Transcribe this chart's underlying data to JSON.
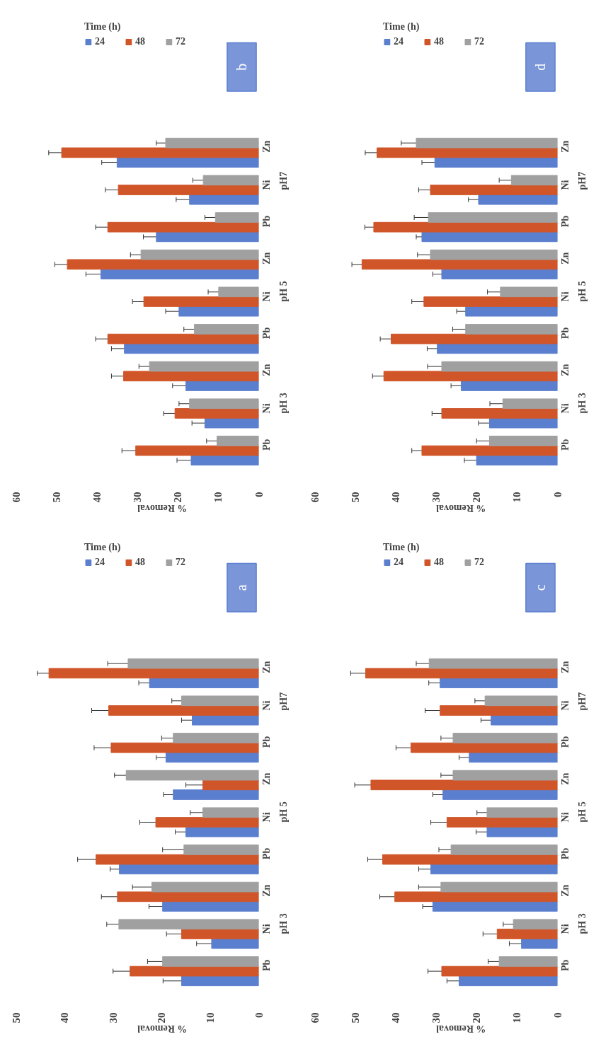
{
  "chart_data": [
    {
      "type": "bar",
      "orientation": "horizontal",
      "categories": [
        "Zn",
        "Ni",
        "Pb",
        "Zn",
        "Ni",
        "Pb",
        "Zn",
        "Ni",
        "Pb"
      ],
      "xlim": [
        60,
        0
      ],
      "xticks": [
        60,
        50,
        40,
        30,
        20,
        10,
        0
      ],
      "xlabel": "% Removal",
      "legend_title": "Time (h)",
      "legend": "top",
      "annotations": [
        "pH7",
        "pH 5",
        "pH 3",
        "b"
      ],
      "series": [
        {
          "name": "24",
          "color": "#5b7fcf",
          "values": [
            35.0,
            17.1,
            25.3,
            39.0,
            19.7,
            33.2,
            18.0,
            13.3,
            16.7
          ],
          "errors": [
            3.8,
            3.3,
            3.2,
            3.7,
            3.3,
            3.2,
            3.3,
            3.2,
            3.5
          ]
        },
        {
          "name": "48",
          "color": "#d0562a",
          "values": [
            48.7,
            34.7,
            37.3,
            47.3,
            28.4,
            37.3,
            33.4,
            20.7,
            30.4
          ],
          "errors": [
            3.2,
            3.2,
            3.0,
            3.1,
            2.8,
            3.0,
            3.0,
            2.8,
            3.4
          ]
        },
        {
          "name": "72",
          "color": "#a0a0a0",
          "values": [
            23.0,
            13.7,
            10.7,
            29.1,
            9.9,
            15.9,
            27.0,
            17.1,
            10.3
          ],
          "errors": [
            2.3,
            2.6,
            2.6,
            2.6,
            2.6,
            2.6,
            2.6,
            2.6,
            2.6
          ]
        }
      ]
    },
    {
      "type": "bar",
      "orientation": "horizontal",
      "categories": [
        "Zn",
        "Ni",
        "Pb",
        "Zn",
        "Ni",
        "Pb",
        "Zn",
        "Ni",
        "Pb"
      ],
      "xlim": [
        60,
        0
      ],
      "xticks": [
        60,
        50,
        40,
        30,
        20,
        10,
        0
      ],
      "xlabel": "% Removal",
      "legend_title": "Time (h)",
      "legend": "top",
      "annotations": [
        "pH7",
        "pH 5",
        "pH 3",
        "d"
      ],
      "series": [
        {
          "name": "24",
          "color": "#5b7fcf",
          "values": [
            30.3,
            19.5,
            33.5,
            28.6,
            22.7,
            29.7,
            23.8,
            16.8,
            20.0
          ],
          "errors": [
            3.2,
            2.5,
            1.4,
            2.2,
            2.2,
            2.5,
            2.5,
            2.7,
            3.0
          ]
        },
        {
          "name": "48",
          "color": "#d0562a",
          "values": [
            44.6,
            31.4,
            45.4,
            48.3,
            33.0,
            41.1,
            42.9,
            28.6,
            33.5
          ],
          "errors": [
            2.9,
            2.9,
            2.2,
            2.5,
            3.0,
            2.7,
            2.8,
            2.4,
            2.5
          ]
        },
        {
          "name": "72",
          "color": "#a0a0a0",
          "values": [
            34.9,
            11.4,
            31.9,
            31.4,
            14.1,
            22.7,
            28.6,
            13.5,
            16.8
          ],
          "errors": [
            3.7,
            3.0,
            3.5,
            3.2,
            3.2,
            3.2,
            3.5,
            3.2,
            3.2
          ]
        }
      ]
    },
    {
      "type": "bar",
      "orientation": "horizontal",
      "categories": [
        "Zn",
        "Ni",
        "Pb",
        "Zn",
        "Ni",
        "Pb",
        "Zn",
        "Ni",
        "Pb"
      ],
      "xlim": [
        50,
        0
      ],
      "xticks": [
        50,
        40,
        30,
        20,
        10,
        0
      ],
      "xlabel": "% Removal",
      "legend_title": "Time (h)",
      "legend": "top",
      "annotations": [
        "pH7",
        "pH 5",
        "pH 3",
        "a"
      ],
      "series": [
        {
          "name": "24",
          "color": "#5b7fcf",
          "values": [
            22.5,
            13.7,
            19.1,
            17.6,
            15.0,
            28.7,
            19.8,
            9.7,
            15.9
          ],
          "errors": [
            2.2,
            2.2,
            2.0,
            2.0,
            2.2,
            1.9,
            2.8,
            3.1,
            3.8
          ]
        },
        {
          "name": "48",
          "color": "#d0562a",
          "values": [
            43.2,
            30.9,
            30.4,
            11.5,
            21.2,
            33.5,
            29.1,
            15.9,
            26.5
          ],
          "errors": [
            2.4,
            3.5,
            3.5,
            3.5,
            3.3,
            3.8,
            3.3,
            3.1,
            3.5
          ]
        },
        {
          "name": "72",
          "color": "#a0a0a0",
          "values": [
            26.9,
            15.9,
            17.6,
            27.3,
            11.5,
            15.4,
            22.0,
            28.8,
            19.8
          ],
          "errors": [
            4.2,
            2.0,
            2.4,
            2.4,
            2.6,
            4.4,
            4.0,
            2.5,
            3.1
          ]
        }
      ]
    },
    {
      "type": "bar",
      "orientation": "horizontal",
      "categories": [
        "Zn",
        "Ni",
        "Pb",
        "Zn",
        "Ni",
        "Pb",
        "Zn",
        "Ni",
        "Pb"
      ],
      "xlim": [
        60,
        0
      ],
      "xticks": [
        60,
        50,
        40,
        30,
        20,
        10,
        0
      ],
      "xlabel": "% Removal",
      "legend_title": "Time (h)",
      "legend": "top",
      "annotations": [
        "pH7",
        "pH 5",
        "pH 3",
        "c"
      ],
      "series": [
        {
          "name": "24",
          "color": "#5b7fcf",
          "values": [
            29.0,
            16.4,
            21.8,
            28.3,
            17.4,
            31.3,
            30.8,
            8.9,
            24.3
          ],
          "errors": [
            2.8,
            2.5,
            2.5,
            2.5,
            2.7,
            3.0,
            2.5,
            3.0,
            3.0
          ]
        },
        {
          "name": "48",
          "color": "#d0562a",
          "values": [
            47.4,
            29.0,
            36.2,
            46.1,
            27.3,
            43.2,
            40.2,
            14.9,
            28.6
          ],
          "errors": [
            3.7,
            3.7,
            3.7,
            4.0,
            4.0,
            3.7,
            3.7,
            3.5,
            3.4
          ]
        },
        {
          "name": "72",
          "color": "#a0a0a0",
          "values": [
            31.7,
            17.9,
            25.8,
            25.8,
            17.4,
            26.3,
            28.8,
            10.9,
            14.4
          ],
          "errors": [
            3.2,
            2.5,
            3.0,
            3.0,
            2.5,
            3.0,
            5.5,
            2.5,
            2.7
          ]
        }
      ]
    }
  ]
}
